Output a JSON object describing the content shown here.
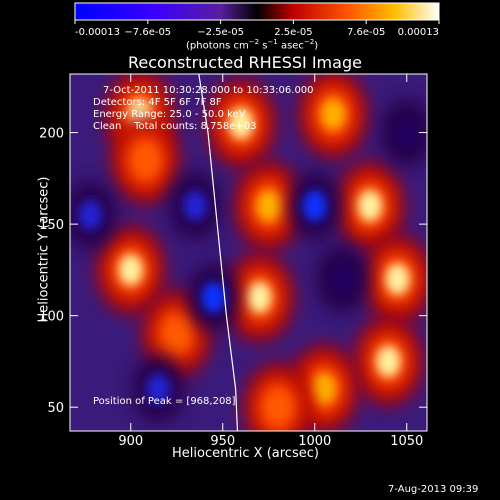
{
  "chart_data": {
    "type": "heatmap",
    "title": "Reconstructed RHESSI Image",
    "xlabel": "Heliocentric X (arcsec)",
    "ylabel": "Heliocentric Y (arcsec)",
    "xlim": [
      867,
      1061
    ],
    "ylim": [
      37,
      232
    ],
    "xticks": [
      900,
      950,
      1000,
      1050
    ],
    "yticks": [
      50,
      100,
      150,
      200
    ],
    "colorbar": {
      "ticks": [
        "-0.00013",
        "−7.6e-05",
        "−2.5e-05",
        "2.5e-05",
        "7.6e-05",
        "0.00013"
      ],
      "units_line": "(photons cm",
      "units_exp1": "−2",
      "units_mid": " s",
      "units_exp2": "−1",
      "units_end": " asec",
      "units_exp3": "−2",
      "units_close": ")",
      "range": [
        -0.00013,
        0.00013
      ]
    },
    "annotations": {
      "time": "7-Oct-2011 10:30:28.000 to 10:33:06.000",
      "detectors": "Detectors: 4F 5F 6F 7F 8F",
      "energy": "Energy Range: 25.0 - 50.0 keV",
      "method": "Clean    Total counts: 8.758e+03",
      "peak": "Position of Peak = [968,208]"
    },
    "footer_date": "7-Aug-2013 09:39",
    "limb": {
      "description": "solar limb curve",
      "points": [
        [
          937,
          232
        ],
        [
          942,
          200
        ],
        [
          947,
          150
        ],
        [
          952,
          100
        ],
        [
          957,
          60
        ],
        [
          958,
          37
        ]
      ]
    },
    "features": {
      "bright_regions": [
        {
          "x": 905,
          "y": 210,
          "v": 1.0
        },
        {
          "x": 908,
          "y": 185,
          "v": 0.7
        },
        {
          "x": 900,
          "y": 125,
          "v": 0.9
        },
        {
          "x": 925,
          "y": 90,
          "v": 0.6
        },
        {
          "x": 960,
          "y": 205,
          "v": 0.9
        },
        {
          "x": 975,
          "y": 160,
          "v": 0.8
        },
        {
          "x": 970,
          "y": 110,
          "v": 0.9
        },
        {
          "x": 1010,
          "y": 210,
          "v": 0.8
        },
        {
          "x": 1030,
          "y": 160,
          "v": 0.9
        },
        {
          "x": 1045,
          "y": 120,
          "v": 1.0
        },
        {
          "x": 1040,
          "y": 75,
          "v": 0.9
        },
        {
          "x": 1005,
          "y": 60,
          "v": 0.8
        },
        {
          "x": 980,
          "y": 50,
          "v": 0.6
        }
      ],
      "dark_regions": [
        {
          "x": 878,
          "y": 155,
          "v": -0.8
        },
        {
          "x": 935,
          "y": 160,
          "v": -0.8
        },
        {
          "x": 945,
          "y": 110,
          "v": -0.9
        },
        {
          "x": 915,
          "y": 60,
          "v": -0.7
        },
        {
          "x": 1000,
          "y": 160,
          "v": -0.9
        },
        {
          "x": 1015,
          "y": 120,
          "v": -0.6
        },
        {
          "x": 1050,
          "y": 200,
          "v": -0.5
        }
      ]
    }
  }
}
